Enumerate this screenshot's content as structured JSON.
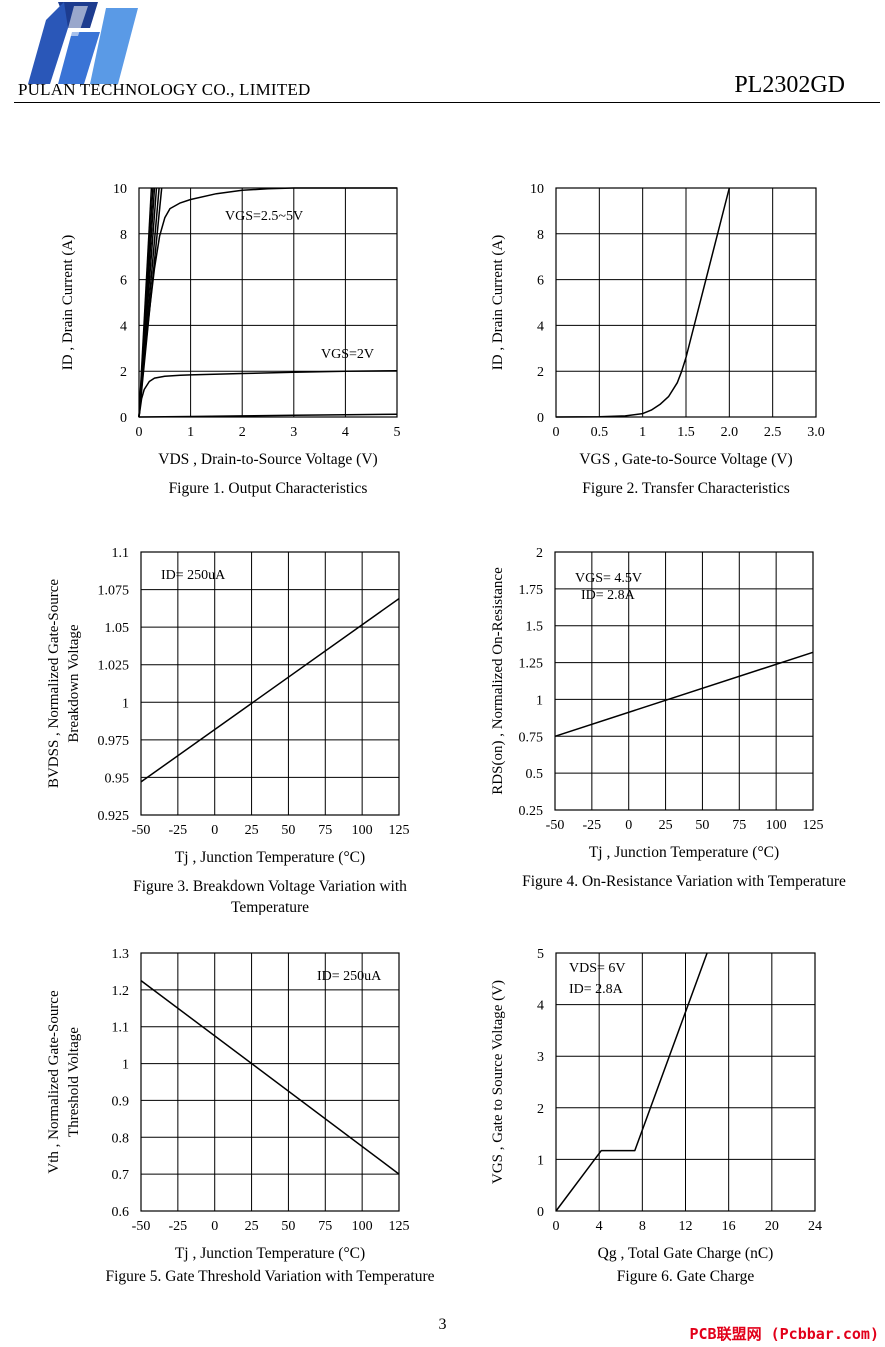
{
  "header": {
    "company": "PULAN TECHNOLOGY CO., LIMITED",
    "part_number": "PL2302GD"
  },
  "footer": {
    "page_number": "3",
    "watermark": "PCB联盟网 (Pcbbar.com)"
  },
  "chart_data": [
    {
      "id": "fig1",
      "type": "line",
      "caption": "Figure 1. Output Characteristics",
      "xlabel": "VDS , Drain-to-Source Voltage (V)",
      "ylabel": "ID , Drain Current (A)",
      "xlim": [
        0,
        5
      ],
      "ylim": [
        0,
        10
      ],
      "xticks": [
        "0",
        "1",
        "2",
        "3",
        "4",
        "5"
      ],
      "yticks": [
        "0",
        "2",
        "4",
        "6",
        "8",
        "10"
      ],
      "grid": true,
      "annotations": [
        "VGS=2.5~5V",
        "VGS=2V"
      ],
      "series": [
        {
          "x": [
            0,
            0.1,
            0.2,
            0.3,
            0.4,
            0.5,
            0.6,
            0.8,
            1.0,
            1.5,
            2,
            2.5,
            3,
            4,
            5
          ],
          "y": [
            0,
            2.5,
            4.6,
            6.5,
            7.9,
            8.7,
            9.1,
            9.35,
            9.5,
            9.75,
            9.9,
            9.97,
            10,
            10,
            10
          ]
        },
        {
          "x": [
            0,
            0.05,
            0.1,
            0.2,
            0.3,
            0.5,
            0.8,
            1,
            2,
            3,
            4,
            5
          ],
          "y": [
            0,
            0.8,
            1.2,
            1.55,
            1.7,
            1.78,
            1.82,
            1.84,
            1.9,
            1.95,
            2.0,
            2.02
          ]
        },
        {
          "x": [
            0,
            1,
            2,
            3,
            4,
            5
          ],
          "y": [
            0,
            0.02,
            0.05,
            0.08,
            0.1,
            0.12
          ]
        },
        {
          "x": [
            0,
            0.44
          ],
          "y": [
            0,
            10
          ]
        },
        {
          "x": [
            0,
            0.39
          ],
          "y": [
            0,
            10
          ]
        },
        {
          "x": [
            0,
            0.34
          ],
          "y": [
            0,
            10
          ]
        },
        {
          "x": [
            0,
            0.3
          ],
          "y": [
            0,
            10
          ]
        },
        {
          "x": [
            0,
            0.27
          ],
          "y": [
            0,
            10
          ]
        },
        {
          "x": [
            0,
            0.24
          ],
          "y": [
            0,
            10
          ]
        }
      ]
    },
    {
      "id": "fig2",
      "type": "line",
      "caption": "Figure 2. Transfer Characteristics",
      "xlabel": "VGS , Gate-to-Source Voltage (V)",
      "ylabel": "ID , Drain Current (A)",
      "xlim": [
        0,
        3
      ],
      "ylim": [
        0,
        10
      ],
      "xticks": [
        "0",
        "0.5",
        "1",
        "1.5",
        "2.0",
        "2.5",
        "3.0"
      ],
      "yticks": [
        "0",
        "2",
        "4",
        "6",
        "8",
        "10"
      ],
      "grid": true,
      "annotations": [],
      "series": [
        {
          "x": [
            0,
            0.5,
            0.8,
            1.0,
            1.1,
            1.2,
            1.3,
            1.4,
            1.45,
            1.5,
            2.0
          ],
          "y": [
            0,
            0.01,
            0.05,
            0.15,
            0.3,
            0.55,
            0.9,
            1.5,
            2.0,
            2.6,
            10
          ]
        }
      ]
    },
    {
      "id": "fig3",
      "type": "line",
      "caption": "Figure 3. Breakdown Voltage Variation with Temperature",
      "xlabel": "Tj , Junction Temperature (°C)",
      "ylabel": "BVDSS , Normalized Gate-Source Breakdown Voltage",
      "xlim": [
        -50,
        125
      ],
      "ylim": [
        0.925,
        1.1
      ],
      "xticks": [
        "-50",
        "-25",
        "0",
        "25",
        "50",
        "75",
        "100",
        "125"
      ],
      "yticks": [
        "0.925",
        "0.95",
        "0.975",
        "1",
        "1.025",
        "1.05",
        "1.075",
        "1.1"
      ],
      "grid": true,
      "annotations": [
        "ID= 250uA"
      ],
      "series": [
        {
          "x": [
            -50,
            125
          ],
          "y": [
            0.947,
            1.069
          ]
        }
      ]
    },
    {
      "id": "fig4",
      "type": "line",
      "caption": "Figure 4. On-Resistance Variation with Temperature",
      "xlabel": "Tj , Junction Temperature (°C)",
      "ylabel": "RDS(on) , Normalized On-Resistance",
      "xlim": [
        -50,
        125
      ],
      "ylim": [
        0.25,
        2
      ],
      "xticks": [
        "-50",
        "-25",
        "0",
        "25",
        "50",
        "75",
        "100",
        "125"
      ],
      "yticks": [
        "0.25",
        "0.5",
        "0.75",
        "1",
        "1.25",
        "1.5",
        "1.75",
        "2"
      ],
      "grid": true,
      "annotations": [
        "VGS= 4.5V",
        "ID= 2.8A"
      ],
      "series": [
        {
          "x": [
            -50,
            125
          ],
          "y": [
            0.75,
            1.32
          ]
        }
      ]
    },
    {
      "id": "fig5",
      "type": "line",
      "caption": "Figure 5. Gate Threshold Variation with Temperature",
      "xlabel": "Tj , Junction Temperature (°C)",
      "ylabel": "Vth , Normalized Gate-Source Threshold Voltage",
      "xlim": [
        -50,
        125
      ],
      "ylim": [
        0.6,
        1.3
      ],
      "xticks": [
        "-50",
        "-25",
        "0",
        "25",
        "50",
        "75",
        "100",
        "125"
      ],
      "yticks": [
        "0.6",
        "0.7",
        "0.8",
        "0.9",
        "1",
        "1.1",
        "1.2",
        "1.3"
      ],
      "grid": true,
      "annotations": [
        "ID= 250uA"
      ],
      "series": [
        {
          "x": [
            -50,
            125
          ],
          "y": [
            1.225,
            0.7
          ]
        }
      ]
    },
    {
      "id": "fig6",
      "type": "line",
      "caption": "Figure 6. Gate Charge",
      "xlabel": "Qg , Total Gate Charge (nC)",
      "ylabel": "VGS , Gate to Source Voltage (V)",
      "xlim": [
        0,
        24
      ],
      "ylim": [
        0,
        5
      ],
      "xticks": [
        "0",
        "4",
        "8",
        "12",
        "16",
        "20",
        "24"
      ],
      "yticks": [
        "0",
        "1",
        "2",
        "3",
        "4",
        "5"
      ],
      "grid": true,
      "annotations": [
        "VDS= 6V",
        "ID= 2.8A"
      ],
      "series": [
        {
          "x": [
            0,
            4.2,
            7.3,
            14
          ],
          "y": [
            0,
            1.17,
            1.17,
            5
          ]
        }
      ]
    }
  ]
}
